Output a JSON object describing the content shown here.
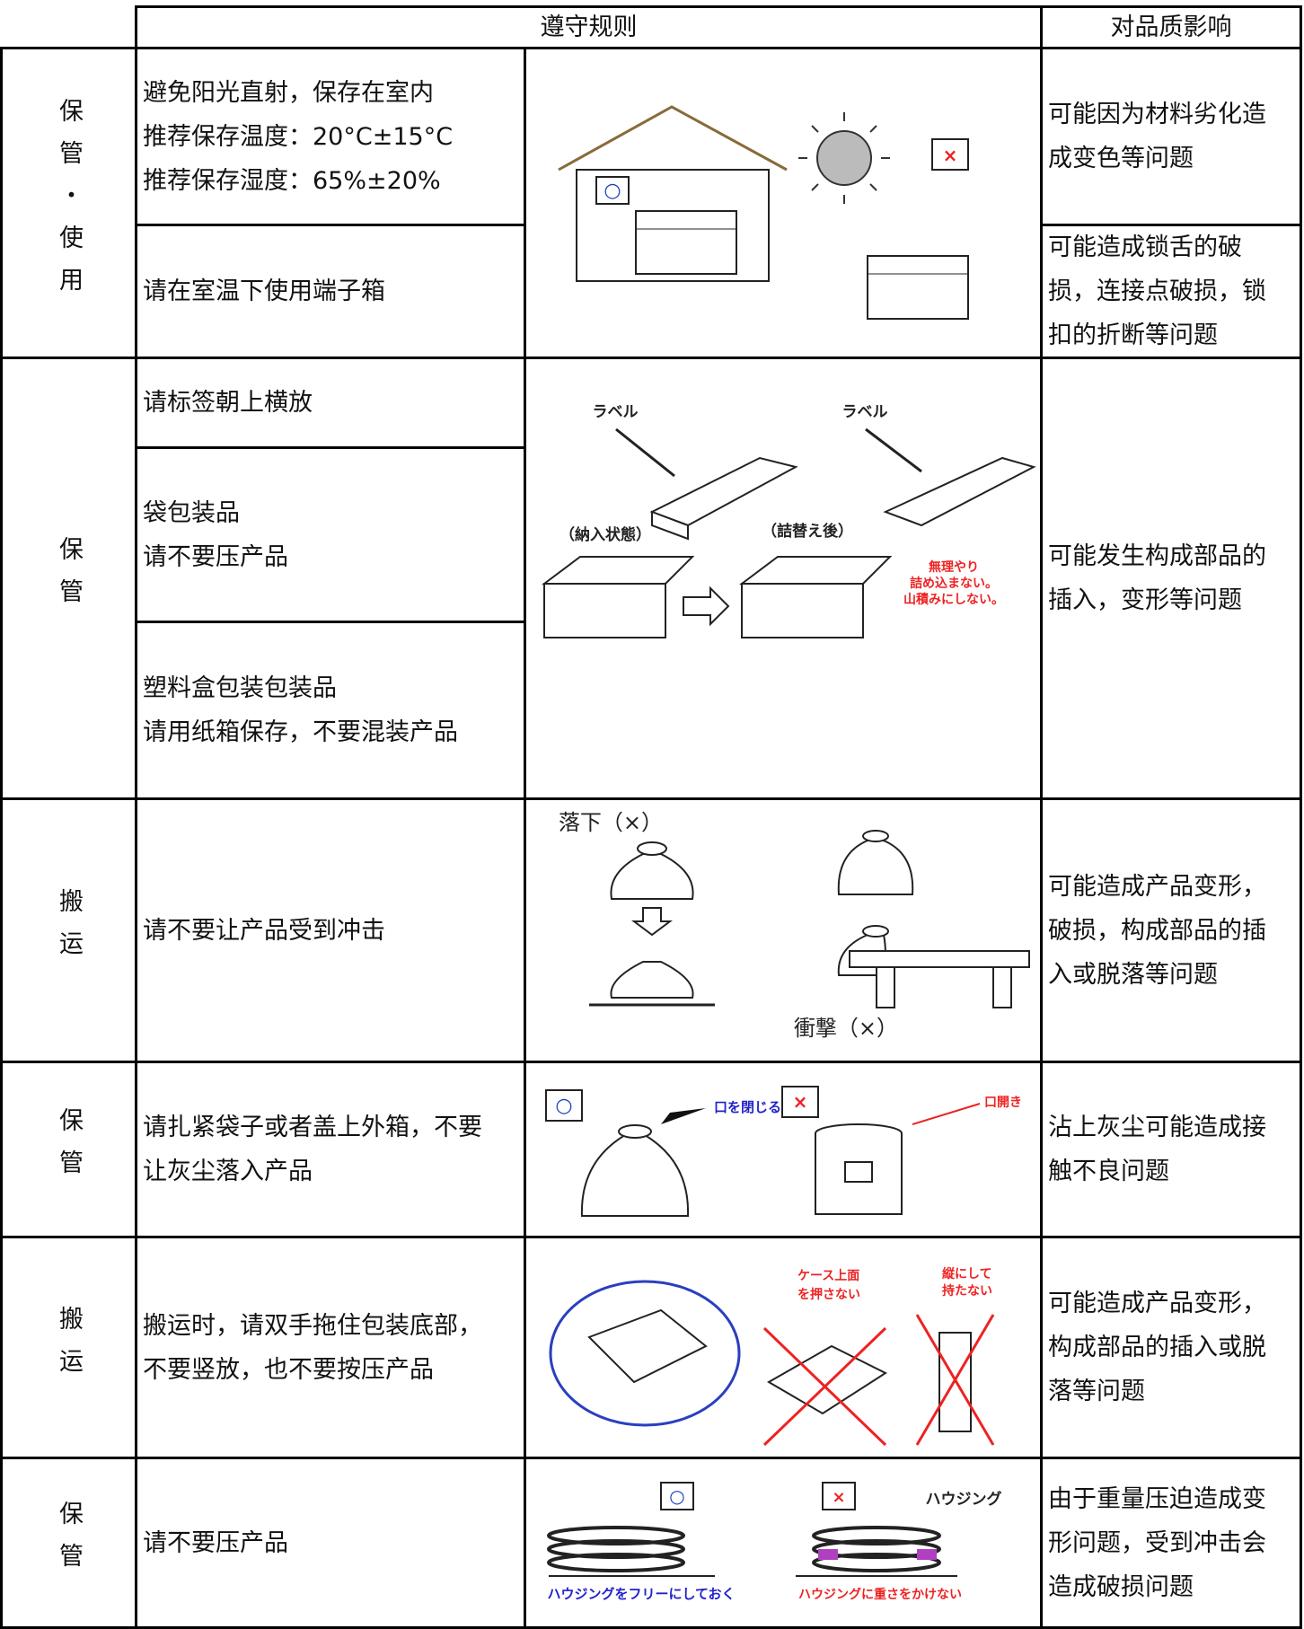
{
  "table": {
    "header": [
      "遵守规则",
      "对品质影响"
    ],
    "rows": [
      {
        "category": "保管・使用",
        "rules": [
          "避免阳光直射，保存在室内\n推荐保存温度：20°C±15°C\n推荐保存湿度：65%±20%",
          "请在室温下使用端子箱"
        ],
        "figure": [
          "○",
          "×"
        ],
        "impacts": [
          "可能因为材料劣化造\n成变色等问题",
          "可能造成锁舌的破\n损，连接点破损，锁\n扣的折断等问题"
        ]
      },
      {
        "category": "保管",
        "rules": [
          "请标签朝上横放",
          "袋包装品\n请不要压产品",
          "塑料盒包装包装品\n请用纸箱保存，不要混装产品"
        ],
        "figure": [
          "ラベル",
          "ラベル",
          "（納入状態）",
          "（詰替え後）",
          "無理やり",
          "詰め込まない。",
          "山積みにしない。"
        ],
        "impacts": [
          "可能发生构成部品的\n插入，变形等问题"
        ]
      },
      {
        "category": "搬运",
        "rules": [
          "请不要让产品受到冲击"
        ],
        "figure": [
          "落下（×）",
          "衝撃（×）"
        ],
        "impacts": [
          "可能造成产品变形，\n破损，构成部品的插\n入或脱落等问题"
        ]
      },
      {
        "category": "保管",
        "rules": [
          "请扎紧袋子或者盖上外箱，不要\n让灰尘落入产品"
        ],
        "figure": [
          "○",
          "口を閉じる",
          "×",
          "口開き"
        ],
        "impacts": [
          "沾上灰尘可能造成接\n触不良问题"
        ]
      },
      {
        "category": "搬运",
        "rules": [
          "搬运时，请双手拖住包装底部，\n不要竖放，也不要按压产品"
        ],
        "figure": [
          "ケース上面",
          "を押さない",
          "縦にして",
          "持たない"
        ],
        "impacts": [
          "可能造成产品变形，\n构成部品的插入或脱\n落等问题"
        ]
      },
      {
        "category": "保管",
        "rules": [
          "请不要压产品"
        ],
        "figure": [
          "○",
          "×",
          "ハウジング",
          "ハウジングをフリーにしておく",
          "ハウジングに重さをかけない"
        ],
        "impacts": [
          "由于重量压迫造成变\n形问题，受到冲击会\n造成破损问题"
        ]
      }
    ]
  }
}
